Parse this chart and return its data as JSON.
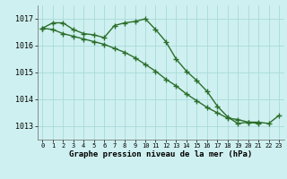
{
  "hours1": [
    0,
    1,
    2,
    3,
    4,
    5,
    6,
    7,
    8,
    9,
    10,
    11,
    12,
    13,
    14,
    15,
    16,
    17,
    18,
    19,
    20,
    21,
    22
  ],
  "series1": [
    1016.65,
    1016.85,
    1016.85,
    1016.6,
    1016.45,
    1016.4,
    1016.3,
    1016.75,
    1016.85,
    1016.9,
    1017.0,
    1016.6,
    1016.15,
    1015.5,
    1015.05,
    1014.7,
    1014.3,
    1013.75,
    1013.35,
    1013.1,
    1013.15,
    1013.1,
    null
  ],
  "hours2": [
    0,
    1,
    2,
    3,
    4,
    5,
    6,
    7,
    8,
    9,
    10,
    11,
    12,
    13,
    14,
    15,
    16,
    17,
    18,
    19,
    20,
    21,
    22,
    23
  ],
  "series2": [
    1016.65,
    1016.6,
    1016.45,
    1016.35,
    1016.25,
    1016.15,
    1016.05,
    1015.9,
    1015.75,
    1015.55,
    1015.3,
    1015.05,
    1014.75,
    1014.5,
    1014.2,
    1013.95,
    1013.7,
    1013.5,
    1013.3,
    1013.25,
    1013.15,
    1013.15,
    1013.1,
    1013.4
  ],
  "line_color": "#2a6e2a",
  "bg_color": "#cff0f0",
  "grid_color": "#a8dada",
  "xlabel": "Graphe pression niveau de la mer (hPa)",
  "ylim": [
    1012.5,
    1017.5
  ],
  "yticks": [
    1013,
    1014,
    1015,
    1016,
    1017
  ],
  "xticks": [
    0,
    1,
    2,
    3,
    4,
    5,
    6,
    7,
    8,
    9,
    10,
    11,
    12,
    13,
    14,
    15,
    16,
    17,
    18,
    19,
    20,
    21,
    22,
    23
  ],
  "marker": "+",
  "markersize": 4,
  "linewidth": 1.0
}
